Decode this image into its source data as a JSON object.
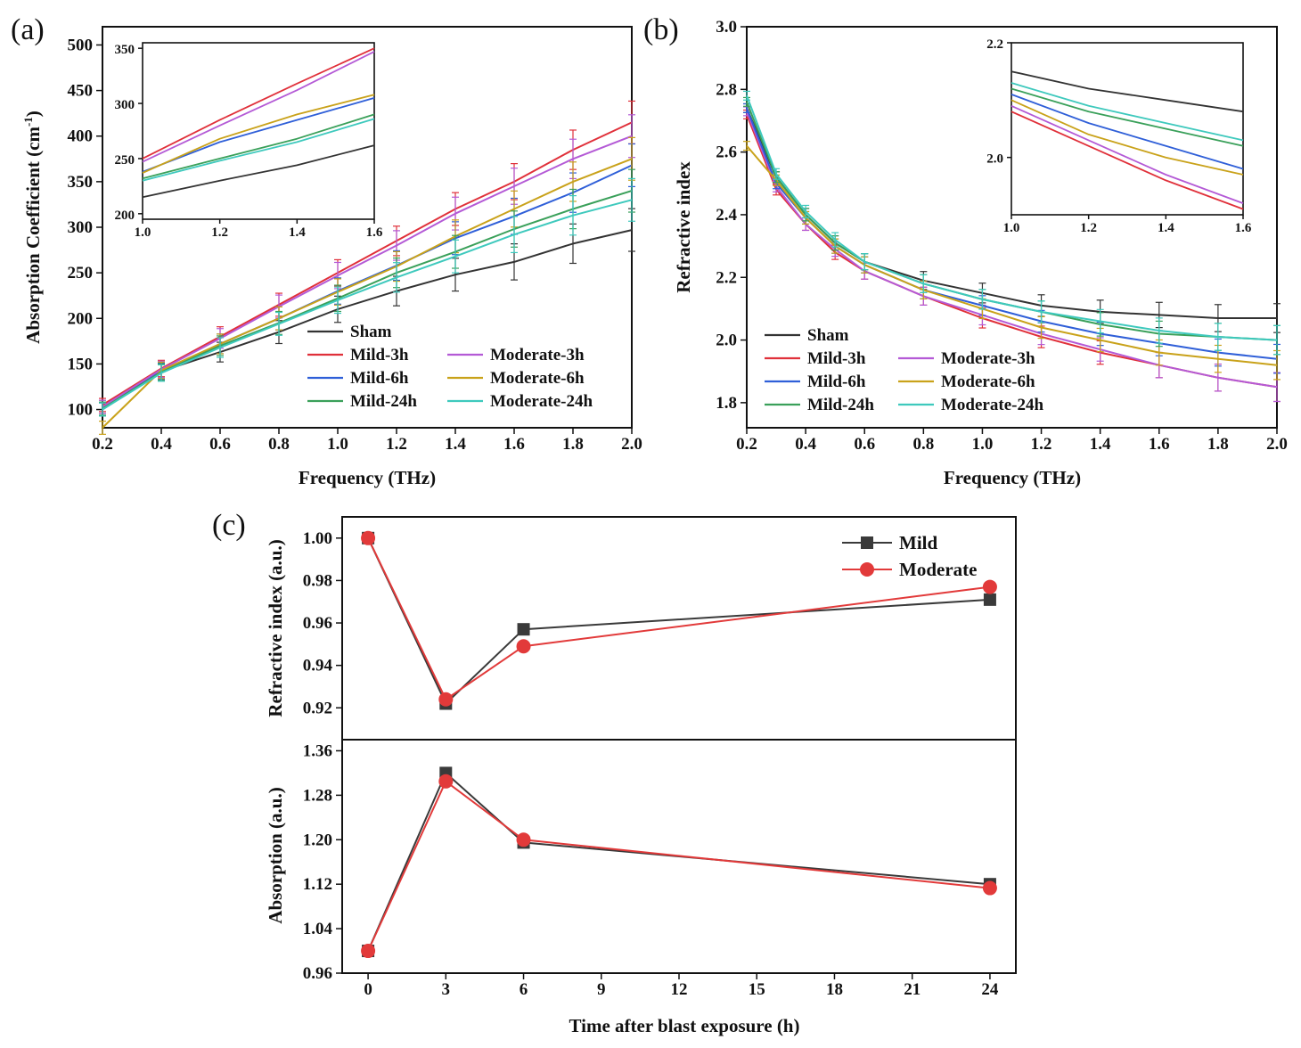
{
  "colors": {
    "sham": "#333333",
    "mild3": "#e0303a",
    "moderate3": "#b45ad6",
    "mild6": "#2f5fd8",
    "moderate6": "#c9a21a",
    "mild24": "#3aa05a",
    "moderate24": "#3ec9bd",
    "mild_c": "#3a3a3a",
    "moderate_c": "#e23a3a"
  },
  "chart_data": [
    {
      "panel": "(a)",
      "type": "line",
      "xlabel": "Frequency (THz)",
      "ylabel_main": "Absorption Coefficient (cm",
      "ylabel_sup": "-1",
      "ylabel_end": ")",
      "xlim": [
        0.2,
        2.0
      ],
      "ylim": [
        80,
        520
      ],
      "xticks": [
        "0.2",
        "0.4",
        "0.6",
        "0.8",
        "1.0",
        "1.2",
        "1.4",
        "1.6",
        "1.8",
        "2.0"
      ],
      "yticks": [
        "100",
        "150",
        "200",
        "250",
        "300",
        "350",
        "400",
        "450",
        "500"
      ],
      "x": [
        0.2,
        0.4,
        0.6,
        0.8,
        1.0,
        1.2,
        1.4,
        1.6,
        1.8,
        2.0
      ],
      "series": [
        {
          "name": "Sham",
          "color_key": "sham",
          "values": [
            103,
            142,
            163,
            185,
            210,
            230,
            248,
            262,
            282,
            297
          ]
        },
        {
          "name": "Mild-3h",
          "color_key": "mild3",
          "values": [
            105,
            145,
            180,
            215,
            250,
            285,
            320,
            350,
            385,
            415
          ]
        },
        {
          "name": "Moderate-3h",
          "color_key": "moderate3",
          "values": [
            103,
            144,
            178,
            213,
            247,
            280,
            315,
            345,
            375,
            400
          ]
        },
        {
          "name": "Mild-6h",
          "color_key": "mild6",
          "values": [
            100,
            142,
            172,
            200,
            230,
            258,
            288,
            312,
            338,
            368
          ]
        },
        {
          "name": "Moderate-6h",
          "color_key": "moderate6",
          "values": [
            80,
            143,
            172,
            200,
            229,
            257,
            290,
            320,
            350,
            375
          ]
        },
        {
          "name": "Mild-24h",
          "color_key": "mild24",
          "values": [
            101,
            141,
            170,
            195,
            222,
            250,
            273,
            298,
            320,
            340
          ]
        },
        {
          "name": "Moderate-24h",
          "color_key": "moderate24",
          "values": [
            100,
            140,
            168,
            194,
            220,
            245,
            268,
            292,
            313,
            330
          ]
        }
      ],
      "inset": {
        "xlim": [
          1.0,
          1.6
        ],
        "ylim": [
          195,
          355
        ],
        "xticks": [
          "1.0",
          "1.2",
          "1.4",
          "1.6"
        ],
        "yticks": [
          "200",
          "250",
          "300",
          "350"
        ],
        "x": [
          1.0,
          1.2,
          1.4,
          1.6
        ],
        "series": [
          {
            "name": "Sham",
            "color_key": "sham",
            "values": [
              215,
              230,
              244,
              262
            ]
          },
          {
            "name": "Mild-3h",
            "color_key": "mild3",
            "values": [
              250,
              285,
              318,
              350
            ]
          },
          {
            "name": "Moderate-3h",
            "color_key": "moderate3",
            "values": [
              247,
              280,
              312,
              347
            ]
          },
          {
            "name": "Mild-6h",
            "color_key": "mild6",
            "values": [
              238,
              265,
              285,
              305
            ]
          },
          {
            "name": "Moderate-6h",
            "color_key": "moderate6",
            "values": [
              237,
              268,
              290,
              308
            ]
          },
          {
            "name": "Mild-24h",
            "color_key": "mild24",
            "values": [
              232,
              250,
              268,
              290
            ]
          },
          {
            "name": "Moderate-24h",
            "color_key": "moderate24",
            "values": [
              230,
              248,
              265,
              286
            ]
          }
        ]
      },
      "legend": [
        "Sham",
        "Mild-3h",
        "Moderate-3h",
        "Mild-6h",
        "Moderate-6h",
        "Mild-24h",
        "Moderate-24h"
      ]
    },
    {
      "panel": "(b)",
      "type": "line",
      "xlabel": "Frequency (THz)",
      "ylabel": "Refractive index",
      "xlim": [
        0.2,
        2.0
      ],
      "ylim": [
        1.72,
        3.0
      ],
      "xticks": [
        "0.2",
        "0.4",
        "0.6",
        "0.8",
        "1.0",
        "1.2",
        "1.4",
        "1.6",
        "1.8",
        "2.0"
      ],
      "yticks": [
        "1.8",
        "2.0",
        "2.2",
        "2.4",
        "2.6",
        "2.8",
        "3.0"
      ],
      "x": [
        0.2,
        0.3,
        0.4,
        0.5,
        0.6,
        0.8,
        1.0,
        1.2,
        1.4,
        1.6,
        1.8,
        2.0
      ],
      "series": [
        {
          "name": "Sham",
          "color_key": "sham",
          "values": [
            2.74,
            2.52,
            2.4,
            2.31,
            2.25,
            2.19,
            2.15,
            2.11,
            2.09,
            2.08,
            2.07,
            2.07
          ]
        },
        {
          "name": "Mild-3h",
          "color_key": "mild3",
          "values": [
            2.72,
            2.48,
            2.37,
            2.28,
            2.22,
            2.14,
            2.07,
            2.01,
            1.96,
            1.92,
            1.88,
            1.85
          ]
        },
        {
          "name": "Moderate-3h",
          "color_key": "moderate3",
          "values": [
            2.73,
            2.49,
            2.37,
            2.29,
            2.22,
            2.14,
            2.08,
            2.02,
            1.97,
            1.92,
            1.88,
            1.85
          ]
        },
        {
          "name": "Mild-6h",
          "color_key": "mild6",
          "values": [
            2.74,
            2.5,
            2.39,
            2.3,
            2.24,
            2.16,
            2.11,
            2.06,
            2.02,
            1.99,
            1.96,
            1.94
          ]
        },
        {
          "name": "Moderate-6h",
          "color_key": "moderate6",
          "values": [
            2.62,
            2.51,
            2.39,
            2.3,
            2.24,
            2.16,
            2.1,
            2.04,
            2.0,
            1.96,
            1.94,
            1.92
          ]
        },
        {
          "name": "Mild-24h",
          "color_key": "mild24",
          "values": [
            2.76,
            2.52,
            2.4,
            2.31,
            2.25,
            2.18,
            2.13,
            2.09,
            2.05,
            2.02,
            2.01,
            2.0
          ]
        },
        {
          "name": "Moderate-24h",
          "color_key": "moderate24",
          "values": [
            2.78,
            2.53,
            2.41,
            2.32,
            2.25,
            2.18,
            2.13,
            2.09,
            2.06,
            2.03,
            2.01,
            2.0
          ]
        }
      ],
      "inset": {
        "xlim": [
          1.0,
          1.6
        ],
        "ylim": [
          1.9,
          2.2
        ],
        "xticks": [
          "1.0",
          "1.2",
          "1.4",
          "1.6"
        ],
        "yticks": [
          "2.0",
          "2.2"
        ],
        "x": [
          1.0,
          1.2,
          1.4,
          1.6
        ],
        "series": [
          {
            "name": "Sham",
            "color_key": "sham",
            "values": [
              2.15,
              2.12,
              2.1,
              2.08
            ]
          },
          {
            "name": "Mild-3h",
            "color_key": "mild3",
            "values": [
              2.08,
              2.02,
              1.96,
              1.91
            ]
          },
          {
            "name": "Moderate-3h",
            "color_key": "moderate3",
            "values": [
              2.09,
              2.03,
              1.97,
              1.92
            ]
          },
          {
            "name": "Mild-6h",
            "color_key": "mild6",
            "values": [
              2.11,
              2.06,
              2.02,
              1.98
            ]
          },
          {
            "name": "Moderate-6h",
            "color_key": "moderate6",
            "values": [
              2.1,
              2.04,
              2.0,
              1.97
            ]
          },
          {
            "name": "Mild-24h",
            "color_key": "mild24",
            "values": [
              2.12,
              2.08,
              2.05,
              2.02
            ]
          },
          {
            "name": "Moderate-24h",
            "color_key": "moderate24",
            "values": [
              2.13,
              2.09,
              2.06,
              2.03
            ]
          }
        ]
      },
      "legend": [
        "Sham",
        "Mild-3h",
        "Moderate-3h",
        "Mild-6h",
        "Moderate-6h",
        "Mild-24h",
        "Moderate-24h"
      ]
    },
    {
      "panel": "(c)",
      "type": "line",
      "xlabel": "Time after blast exposure (h)",
      "xlim": [
        -1.0,
        25.0
      ],
      "xticks": [
        "0",
        "3",
        "6",
        "9",
        "12",
        "15",
        "18",
        "21",
        "24"
      ],
      "x": [
        0,
        3,
        6,
        24
      ],
      "top": {
        "ylabel": "Refractive index (a.u.)",
        "ylim": [
          0.905,
          1.01
        ],
        "yticks": [
          "0.92",
          "0.94",
          "0.96",
          "0.98",
          "1.00"
        ],
        "series": [
          {
            "name": "Mild",
            "color_key": "mild_c",
            "marker": "square",
            "values": [
              1.0,
              0.922,
              0.957,
              0.971
            ]
          },
          {
            "name": "Moderate",
            "color_key": "moderate_c",
            "marker": "circle",
            "values": [
              1.0,
              0.924,
              0.949,
              0.977
            ]
          }
        ]
      },
      "bottom": {
        "ylabel": "Absorption (a.u.)",
        "ylim": [
          0.96,
          1.38
        ],
        "yticks": [
          "0.96",
          "1.04",
          "1.12",
          "1.20",
          "1.28",
          "1.36"
        ],
        "series": [
          {
            "name": "Mild",
            "color_key": "mild_c",
            "marker": "square",
            "values": [
              1.0,
              1.32,
              1.195,
              1.12
            ]
          },
          {
            "name": "Moderate",
            "color_key": "moderate_c",
            "marker": "circle",
            "values": [
              1.0,
              1.305,
              1.2,
              1.113
            ]
          }
        ]
      },
      "legend": [
        "Mild",
        "Moderate"
      ]
    }
  ]
}
